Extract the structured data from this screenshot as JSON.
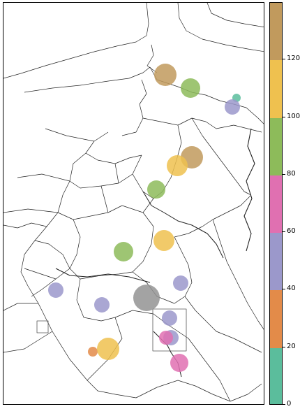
{
  "chart_data": {
    "type": "scatter",
    "description_kind": "bubble map over administrative boundaries",
    "colorbar": {
      "min": 0,
      "max": 140,
      "ticks": [
        0,
        20,
        40,
        60,
        80,
        100,
        120
      ],
      "tick_labels": [
        "0",
        "20",
        "40",
        "60",
        "80",
        "100",
        "120"
      ],
      "bins": [
        {
          "from": 0,
          "to": 20,
          "color": "#5bbd9c"
        },
        {
          "from": 20,
          "to": 40,
          "color": "#e38b49"
        },
        {
          "from": 40,
          "to": 60,
          "color": "#9b98cb"
        },
        {
          "from": 60,
          "to": 80,
          "color": "#e070b1"
        },
        {
          "from": 80,
          "to": 100,
          "color": "#8dbb5a"
        },
        {
          "from": 100,
          "to": 120,
          "color": "#efc14f"
        },
        {
          "from": 120,
          "to": 140,
          "color": "#c19a5d"
        },
        {
          "from": 140,
          "to": 160,
          "color": "#939393"
        }
      ]
    },
    "points": [
      {
        "value": 130,
        "color": "#c19a5d"
      },
      {
        "value": 85,
        "color": "#8dbb5a"
      },
      {
        "value": 5,
        "color": "#5bbd9c"
      },
      {
        "value": 45,
        "color": "#9b98cb"
      },
      {
        "value": 130,
        "color": "#c19a5d"
      },
      {
        "value": 110,
        "color": "#efc14f"
      },
      {
        "value": 85,
        "color": "#8dbb5a"
      },
      {
        "value": 110,
        "color": "#efc14f"
      },
      {
        "value": 85,
        "color": "#8dbb5a"
      },
      {
        "value": 45,
        "color": "#9b98cb"
      },
      {
        "value": 45,
        "color": "#9b98cb"
      },
      {
        "value": 45,
        "color": "#9b98cb"
      },
      {
        "value": 150,
        "color": "#939393"
      },
      {
        "value": 45,
        "color": "#9b98cb"
      },
      {
        "value": 45,
        "color": "#9b98cb"
      },
      {
        "value": 65,
        "color": "#e070b1"
      },
      {
        "value": 25,
        "color": "#e38b49"
      },
      {
        "value": 110,
        "color": "#efc14f"
      },
      {
        "value": 65,
        "color": "#e070b1"
      }
    ]
  }
}
